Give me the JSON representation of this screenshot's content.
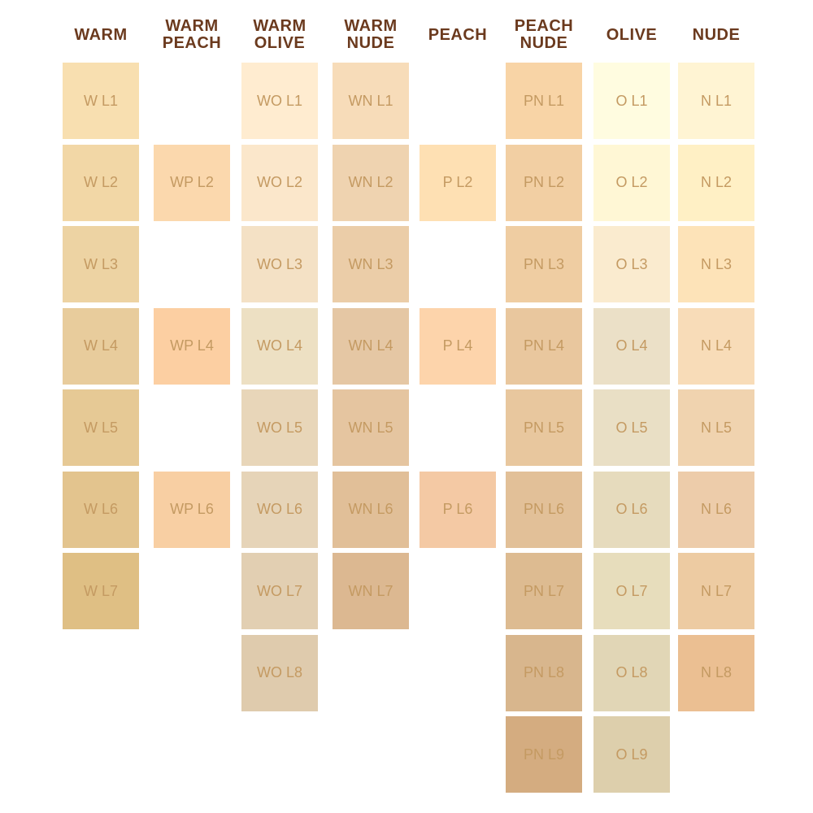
{
  "columns": [
    {
      "header": [
        "WARM"
      ],
      "swatches": [
        {
          "label": "W L1",
          "color": "#f8dfb0"
        },
        {
          "label": "W L2",
          "color": "#f2d7a6"
        },
        {
          "label": "W L3",
          "color": "#edd3a3"
        },
        {
          "label": "W L4",
          "color": "#e8cc9c"
        },
        {
          "label": "W L5",
          "color": "#e6c995"
        },
        {
          "label": "W L6",
          "color": "#e3c48e"
        },
        {
          "label": "W L7",
          "color": "#dfbf84"
        }
      ]
    },
    {
      "header": [
        "WARM",
        "PEACH"
      ],
      "swatches": [
        null,
        {
          "label": "WP L2",
          "color": "#fbd8ad"
        },
        null,
        {
          "label": "WP L4",
          "color": "#fccfa2"
        },
        null,
        {
          "label": "WP L6",
          "color": "#f8cfa3"
        }
      ]
    },
    {
      "header": [
        "WARM",
        "OLIVE"
      ],
      "swatches": [
        {
          "label": "WO L1",
          "color": "#ffecd0"
        },
        {
          "label": "WO L2",
          "color": "#fbe7cb"
        },
        {
          "label": "WO L3",
          "color": "#f4e1c5"
        },
        {
          "label": "WO L4",
          "color": "#ede0c3"
        },
        {
          "label": "WO L5",
          "color": "#e8d6b9"
        },
        {
          "label": "WO L6",
          "color": "#e6d4b8"
        },
        {
          "label": "WO L7",
          "color": "#e2cfb2"
        },
        {
          "label": "WO L8",
          "color": "#dfcbad"
        }
      ]
    },
    {
      "header": [
        "WARM",
        "NUDE"
      ],
      "swatches": [
        {
          "label": "WN L1",
          "color": "#f7dcb9"
        },
        {
          "label": "WN L2",
          "color": "#efd3b0"
        },
        {
          "label": "WN L3",
          "color": "#ebcda8"
        },
        {
          "label": "WN L4",
          "color": "#e5c7a4"
        },
        {
          "label": "WN L5",
          "color": "#e5c5a0"
        },
        {
          "label": "WN L6",
          "color": "#e1bf98"
        },
        {
          "label": "WN L7",
          "color": "#dcb891"
        }
      ]
    },
    {
      "header": [
        "PEACH"
      ],
      "swatches": [
        null,
        {
          "label": "P L2",
          "color": "#fee0b3"
        },
        null,
        {
          "label": "P L4",
          "color": "#fdd4ab"
        },
        null,
        {
          "label": "P L6",
          "color": "#f4c9a4"
        }
      ]
    },
    {
      "header": [
        "PEACH",
        "NUDE"
      ],
      "swatches": [
        {
          "label": "PN L1",
          "color": "#f8d4a6"
        },
        {
          "label": "PN L2",
          "color": "#f2cfa3"
        },
        {
          "label": "PN L3",
          "color": "#efcda2"
        },
        {
          "label": "PN L4",
          "color": "#e9c79e"
        },
        {
          "label": "PN L5",
          "color": "#e8c79e"
        },
        {
          "label": "PN L6",
          "color": "#e2c098"
        },
        {
          "label": "PN L7",
          "color": "#ddbb91"
        },
        {
          "label": "PN L8",
          "color": "#d8b68d"
        },
        {
          "label": "PN L9",
          "color": "#d4ac80"
        }
      ]
    },
    {
      "header": [
        "OLIVE"
      ],
      "swatches": [
        {
          "label": "O L1",
          "color": "#fffce0"
        },
        {
          "label": "O L2",
          "color": "#fff7d5"
        },
        {
          "label": "O L3",
          "color": "#faebcf"
        },
        {
          "label": "O L4",
          "color": "#ebe0c7"
        },
        {
          "label": "O L5",
          "color": "#e9dfc5"
        },
        {
          "label": "O L6",
          "color": "#e6dbbd"
        },
        {
          "label": "O L7",
          "color": "#e7ddbc"
        },
        {
          "label": "O L8",
          "color": "#e1d6b6"
        },
        {
          "label": "O L9",
          "color": "#ddcfac"
        }
      ]
    },
    {
      "header": [
        "NUDE"
      ],
      "swatches": [
        {
          "label": "N L1",
          "color": "#fff4d3"
        },
        {
          "label": "N L2",
          "color": "#fff0c5"
        },
        {
          "label": "N L3",
          "color": "#fde3b8"
        },
        {
          "label": "N L4",
          "color": "#f8dcb8"
        },
        {
          "label": "N L5",
          "color": "#f0d3af"
        },
        {
          "label": "N L6",
          "color": "#edccaa"
        },
        {
          "label": "N L7",
          "color": "#edcba2"
        },
        {
          "label": "N L8",
          "color": "#ebbf92"
        }
      ]
    }
  ]
}
